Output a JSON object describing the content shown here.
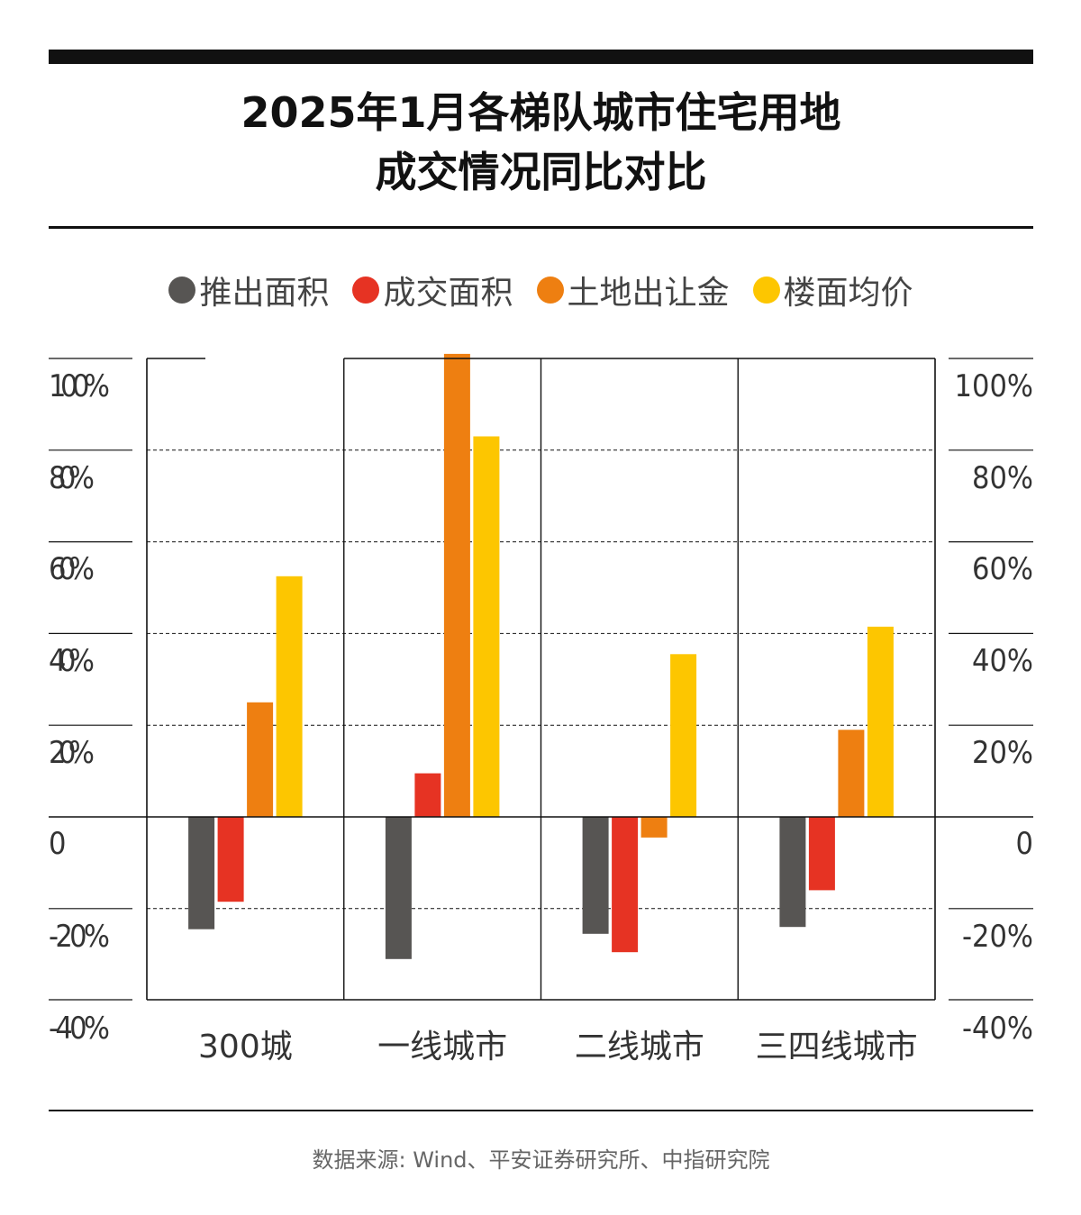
{
  "title_lines": [
    "2025年1月各梯队城市住宅用地",
    "成交情况同比对比"
  ],
  "source": "数据来源: Wind、平安证券研究所、中指研究院",
  "colors": {
    "推出面积": "#575553",
    "成交面积": "#e63323",
    "土地出让金": "#ee7f11",
    "楼面均价": "#fdc600"
  },
  "chart_data": {
    "type": "bar",
    "categories": [
      "300城",
      "一线城市",
      "二线城市",
      "三四线城市"
    ],
    "series": [
      {
        "name": "推出面积",
        "values": [
          -24.5,
          -31,
          -25.5,
          -24
        ]
      },
      {
        "name": "成交面积",
        "values": [
          -18.5,
          9.5,
          -29.5,
          -16
        ]
      },
      {
        "name": "土地出让金",
        "values": [
          25,
          101,
          -4.5,
          19
        ]
      },
      {
        "name": "楼面均价",
        "values": [
          52.5,
          83,
          35.5,
          41.5
        ]
      }
    ],
    "ylim": [
      -40,
      100
    ],
    "yticks": [
      100,
      80,
      60,
      40,
      20,
      0,
      -20,
      -40
    ],
    "ytick_labels": [
      "100%",
      "80%",
      "60%",
      "40%",
      "20%",
      "0",
      "-20%",
      "-40%"
    ],
    "legend": "top",
    "grid": true
  }
}
